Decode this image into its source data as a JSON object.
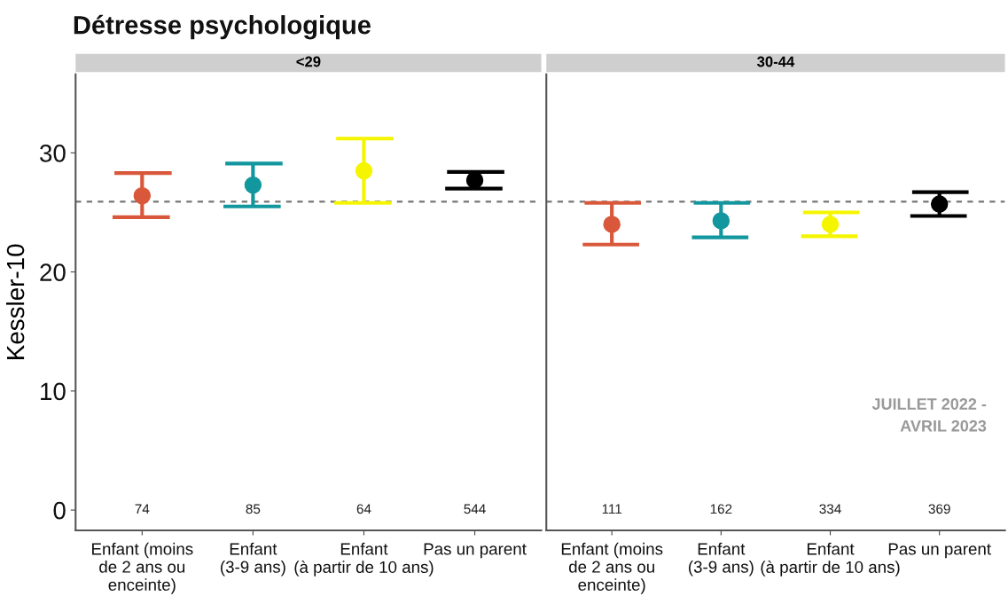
{
  "chart_data": [
    {
      "type": "scatter",
      "title": "<29",
      "ylabel": "Kessler-10",
      "marker": "circle",
      "grid": false,
      "legend": false,
      "categories": [
        "Enfant (moins\nde 2 ans ou\nenceinte)",
        "Enfant\n(3-9 ans)",
        "Enfant\n(à partir de 10 ans)",
        "Pas un parent"
      ],
      "values": [
        26.4,
        27.3,
        28.5,
        27.7
      ],
      "errors": [
        [
          24.6,
          28.3
        ],
        [
          25.5,
          29.1
        ],
        [
          25.8,
          31.2
        ],
        [
          27.0,
          28.4
        ]
      ],
      "colors": [
        "#d9583b",
        "#13979f",
        "#f5f500",
        "#000000"
      ],
      "ylim": [
        -1.7,
        36.6
      ],
      "yticks": [
        0,
        10,
        20,
        30
      ],
      "ref_lines": [
        {
          "axis": "y",
          "value": 25.9,
          "color": "#777777",
          "line_style": "dashed"
        }
      ],
      "annotations": [
        "Détresse psychologique",
        "74",
        "85",
        "64",
        "544"
      ]
    },
    {
      "type": "scatter",
      "title": "30-44",
      "marker": "circle",
      "grid": false,
      "legend": false,
      "tick_labels": "x",
      "categories": [
        "Enfant (moins\nde 2 ans ou\nenceinte)",
        "Enfant\n(3-9 ans)",
        "Enfant\n(à partir de 10 ans)",
        "Pas un parent"
      ],
      "values": [
        24.0,
        24.3,
        24.0,
        25.7
      ],
      "errors": [
        [
          22.3,
          25.8
        ],
        [
          22.9,
          25.8
        ],
        [
          23.0,
          25.0
        ],
        [
          24.7,
          26.7
        ]
      ],
      "colors": [
        "#d9583b",
        "#13979f",
        "#f5f500",
        "#000000"
      ],
      "ylim": [
        -1.7,
        36.6
      ],
      "yticks": [
        0,
        10,
        20,
        30
      ],
      "ref_lines": [
        {
          "axis": "y",
          "value": 25.9,
          "color": "#777777",
          "line_style": "dashed"
        }
      ],
      "annotations": [
        "JUILLET 2022 -\nAVRIL 2023",
        "111",
        "162",
        "334",
        "369"
      ]
    }
  ]
}
